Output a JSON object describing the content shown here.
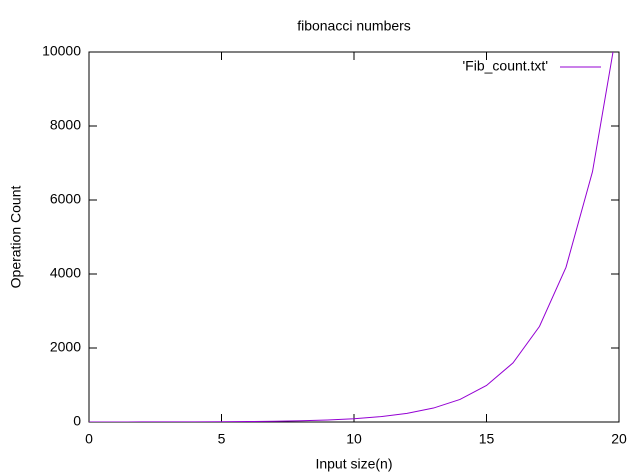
{
  "chart_data": {
    "type": "line",
    "title": "fibonacci numbers",
    "x_label": "Input size(n)",
    "y_label": "Operation Count",
    "x": [
      0,
      1,
      2,
      3,
      4,
      5,
      6,
      7,
      8,
      9,
      10,
      11,
      12,
      13,
      14,
      15,
      16,
      17,
      18,
      19,
      20
    ],
    "series": [
      {
        "name": "'Fib_count.txt'",
        "color": "#9400d3",
        "values": [
          1,
          1,
          2,
          3,
          5,
          8,
          13,
          21,
          34,
          55,
          89,
          144,
          233,
          377,
          610,
          987,
          1597,
          2584,
          4181,
          6765,
          10946
        ]
      }
    ],
    "xlim": [
      0,
      20
    ],
    "xticks": [
      0,
      5,
      10,
      15,
      20
    ],
    "ylim": [
      0,
      10000
    ],
    "yticks": [
      0,
      2000,
      4000,
      6000,
      8000,
      10000
    ],
    "grid": false,
    "legend_position": "top-right"
  }
}
